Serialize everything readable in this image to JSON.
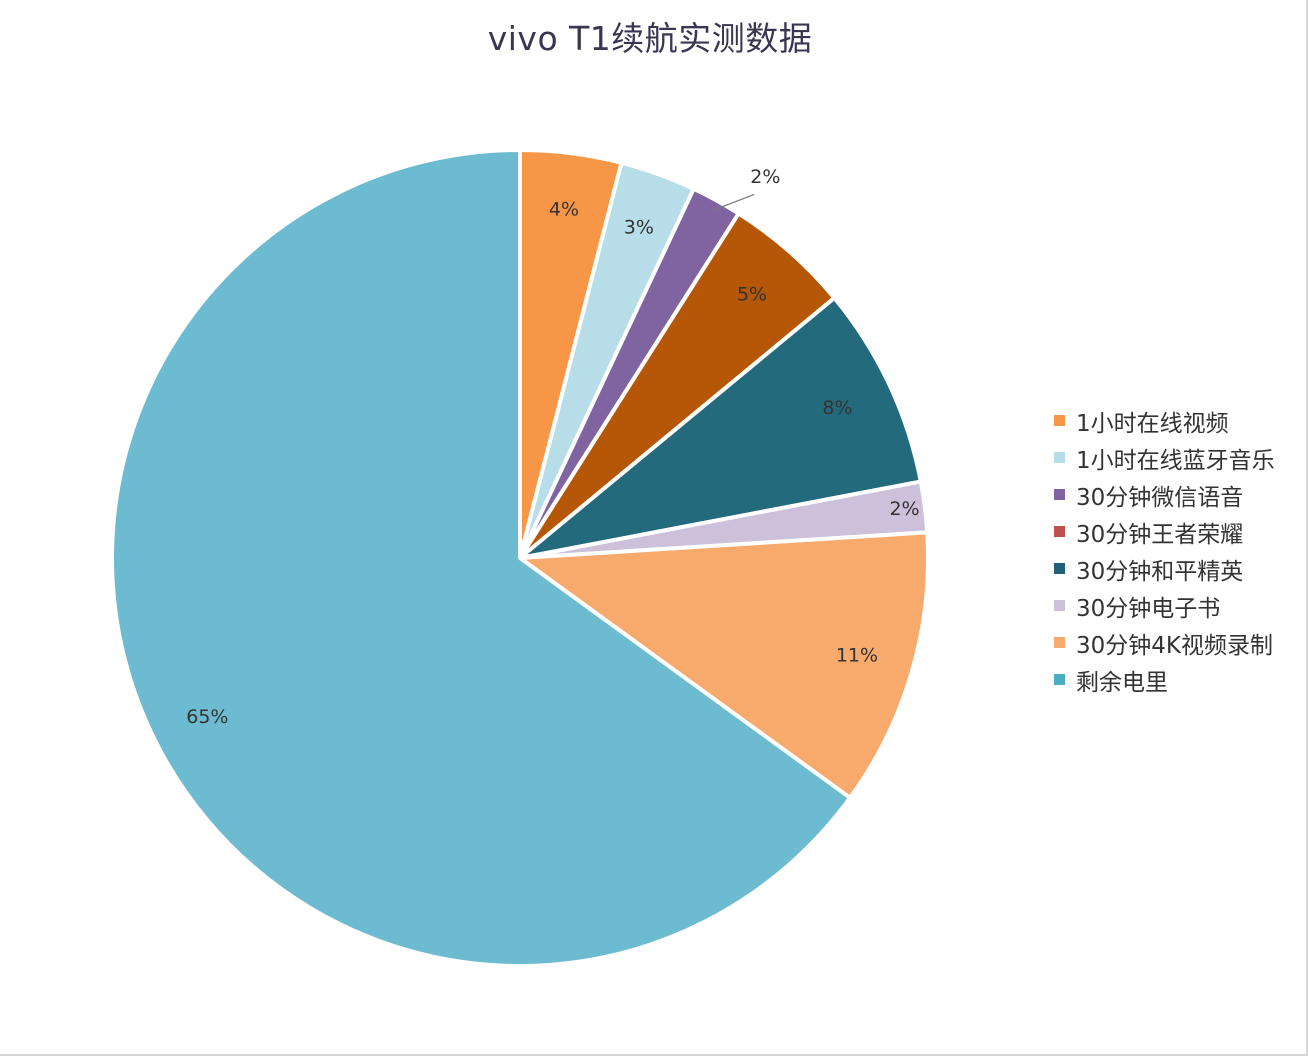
{
  "chart_data": {
    "type": "pie",
    "title": "vivo T1续航实测数据",
    "categories": [
      "1小时在线视频",
      "1小时在线蓝牙音乐",
      "30分钟微信语音",
      "30分钟王者荣耀",
      "30分钟和平精英",
      "30分钟电子书",
      "30分钟4K视频录制",
      "剩余电里"
    ],
    "values": [
      4,
      3,
      2,
      5,
      8,
      2,
      11,
      65
    ],
    "labels": [
      "4%",
      "3%",
      "2%",
      "5%",
      "8%",
      "2%",
      "11%",
      "65%"
    ],
    "colors": [
      "#f79646",
      "#b7dde8",
      "#8064a2",
      "#b65708",
      "#236a7c",
      "#ccc0da",
      "#f8a96c",
      "#6dbbd0"
    ],
    "legend_colors": [
      "#f79646",
      "#b7dde8",
      "#8064a2",
      "#c0504d",
      "#1f5f7a",
      "#ccc0da",
      "#f8a96c",
      "#4bacc6"
    ],
    "legend_position": "right",
    "start_angle_deg": 0,
    "direction": "clockwise"
  }
}
